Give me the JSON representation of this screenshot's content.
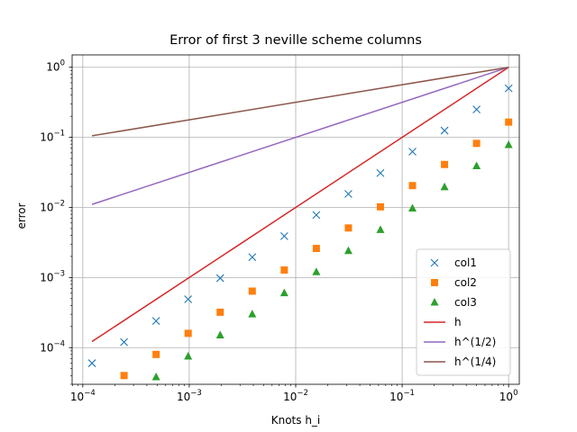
{
  "chart_data": {
    "type": "scatter",
    "title": "Error of first 3 neville scheme columns",
    "xlabel": "Knots h_i",
    "ylabel": "error",
    "xscale": "log",
    "yscale": "log",
    "xlim": [
      7.94e-05,
      1.26
    ],
    "ylim": [
      3e-05,
      1.5
    ],
    "grid": true,
    "legend_position": "lower-right",
    "x_ticks": [
      {
        "base": "10",
        "exp": "−4",
        "value": 0.0001
      },
      {
        "base": "10",
        "exp": "−3",
        "value": 0.001
      },
      {
        "base": "10",
        "exp": "−2",
        "value": 0.01
      },
      {
        "base": "10",
        "exp": "−1",
        "value": 0.1
      },
      {
        "base": "10",
        "exp": "0",
        "value": 1
      }
    ],
    "y_ticks": [
      {
        "base": "10",
        "exp": "−4",
        "value": 0.0001
      },
      {
        "base": "10",
        "exp": "−3",
        "value": 0.001
      },
      {
        "base": "10",
        "exp": "−2",
        "value": 0.01
      },
      {
        "base": "10",
        "exp": "−1",
        "value": 0.1
      },
      {
        "base": "10",
        "exp": "0",
        "value": 1
      }
    ],
    "series": [
      {
        "name": "col1",
        "kind": "marker",
        "marker": "x",
        "color": "#1f77b4",
        "points": [
          [
            0.0001220703125,
            6e-05
          ],
          [
            0.000244140625,
            0.00012
          ],
          [
            0.00048828125,
            0.00024
          ],
          [
            0.0009765625,
            0.00049
          ],
          [
            0.001953125,
            0.00098
          ],
          [
            0.00390625,
            0.00195
          ],
          [
            0.0078125,
            0.0039
          ],
          [
            0.015625,
            0.0078
          ],
          [
            0.03125,
            0.0156
          ],
          [
            0.0625,
            0.031
          ],
          [
            0.125,
            0.0625
          ],
          [
            0.25,
            0.125
          ],
          [
            0.5,
            0.25
          ],
          [
            1,
            0.5
          ]
        ]
      },
      {
        "name": "col2",
        "kind": "marker",
        "marker": "square",
        "color": "#ff7f0e",
        "points": [
          [
            0.000244140625,
            4e-05
          ],
          [
            0.00048828125,
            8e-05
          ],
          [
            0.0009765625,
            0.00016
          ],
          [
            0.001953125,
            0.00032
          ],
          [
            0.00390625,
            0.00064
          ],
          [
            0.0078125,
            0.00128
          ],
          [
            0.015625,
            0.0026
          ],
          [
            0.03125,
            0.0051
          ],
          [
            0.0625,
            0.0102
          ],
          [
            0.125,
            0.0205
          ],
          [
            0.25,
            0.041
          ],
          [
            0.5,
            0.082
          ],
          [
            1,
            0.165
          ]
        ]
      },
      {
        "name": "col3",
        "kind": "marker",
        "marker": "triangle",
        "color": "#2ca02c",
        "points": [
          [
            0.00048828125,
            3.8e-05
          ],
          [
            0.0009765625,
            7.5e-05
          ],
          [
            0.001953125,
            0.00015
          ],
          [
            0.00390625,
            0.0003
          ],
          [
            0.0078125,
            0.0006
          ],
          [
            0.015625,
            0.0012
          ],
          [
            0.03125,
            0.0024
          ],
          [
            0.0625,
            0.0048
          ],
          [
            0.125,
            0.0097
          ],
          [
            0.25,
            0.0195
          ],
          [
            0.5,
            0.039
          ],
          [
            1,
            0.078
          ]
        ]
      },
      {
        "name": "h",
        "kind": "line",
        "color": "#d62728",
        "points": [
          [
            0.0001220703125,
            0.0001220703125
          ],
          [
            1,
            1
          ]
        ]
      },
      {
        "name": "h^(1/2)",
        "kind": "line",
        "color": "#9467bd",
        "points": [
          [
            0.0001220703125,
            0.01105
          ],
          [
            1,
            1
          ]
        ]
      },
      {
        "name": "h^(1/4)",
        "kind": "line",
        "color": "#8c564b",
        "points": [
          [
            0.0001220703125,
            0.1051
          ],
          [
            1,
            1
          ]
        ]
      }
    ]
  }
}
